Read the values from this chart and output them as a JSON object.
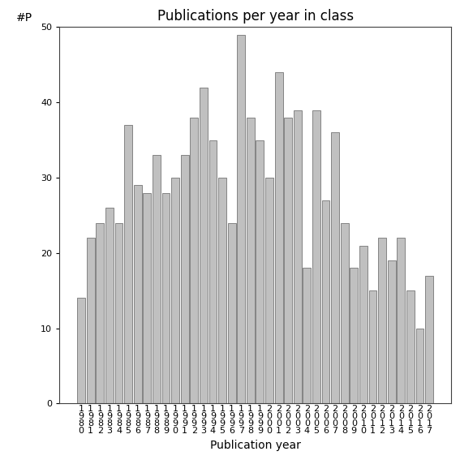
{
  "title": "Publications per year in class",
  "xlabel": "Publication year",
  "ylabel": "#P",
  "years": [
    "1980",
    "1981",
    "1982",
    "1983",
    "1984",
    "1985",
    "1986",
    "1987",
    "1988",
    "1989",
    "1990",
    "1991",
    "1992",
    "1993",
    "1994",
    "1995",
    "1996",
    "1997",
    "1998",
    "1999",
    "2000",
    "2001",
    "2002",
    "2003",
    "2004",
    "2005",
    "2006",
    "2007",
    "2008",
    "2009",
    "2010",
    "2011",
    "2012",
    "2013",
    "2014",
    "2015",
    "2016",
    "2017"
  ],
  "values": [
    14,
    22,
    24,
    26,
    24,
    37,
    29,
    28,
    33,
    28,
    30,
    33,
    38,
    42,
    35,
    30,
    24,
    49,
    38,
    35,
    30,
    44,
    38,
    39,
    18,
    39,
    27,
    36,
    24,
    18,
    21,
    15,
    22,
    19,
    22,
    15,
    10,
    17
  ],
  "bar_color": "#c0c0c0",
  "bar_edgecolor": "#606060",
  "ylim": [
    0,
    50
  ],
  "yticks": [
    0,
    10,
    20,
    30,
    40,
    50
  ],
  "background_color": "#ffffff",
  "title_fontsize": 12,
  "axis_label_fontsize": 10,
  "tick_fontsize": 8
}
